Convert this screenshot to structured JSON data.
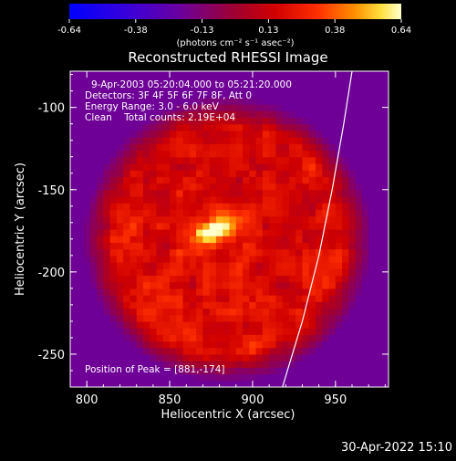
{
  "chart_data": {
    "type": "heatmap",
    "title": "Reconstructed RHESSI Image",
    "xlabel": "Heliocentric X (arcsec)",
    "ylabel": "Heliocentric Y (arcsec)",
    "xlim": [
      790,
      982
    ],
    "ylim": [
      -270,
      -78
    ],
    "xticks": [
      800,
      850,
      900,
      950
    ],
    "yticks": [
      -100,
      -150,
      -200,
      -250
    ],
    "info_lines": [
      "9-Apr-2003 05:20:04.000 to 05:21:20.000",
      "Detectors: 3F 4F 5F 6F 7F 8F, Att 0",
      "Energy Range: 3.0 - 6.0 keV",
      "Clean    Total counts: 2.19E+04"
    ],
    "peak_text": "Position of Peak = [881,-174]",
    "peak": {
      "x": 881,
      "y": -174,
      "value": 0.64
    },
    "colorbar": {
      "range": [
        -0.64,
        0.64
      ],
      "ticks": [
        "-0.64",
        "-0.38",
        "-0.13",
        "0.13",
        "0.38",
        "0.64"
      ],
      "unit_label": "(photons cm⁻² s⁻¹ asec⁻²)"
    },
    "source": {
      "center": [
        885,
        -180
      ],
      "radius": 78,
      "background": -0.2,
      "diffuse_level": 0.12,
      "core_center": [
        876,
        -175
      ],
      "core_sigma": [
        10,
        5
      ],
      "core_angle_deg": 25
    },
    "limb_curve": {
      "points": [
        [
          918,
          -270
        ],
        [
          930,
          -230
        ],
        [
          940,
          -190
        ],
        [
          948,
          -150
        ],
        [
          955,
          -110
        ],
        [
          960,
          -78
        ]
      ]
    }
  },
  "footer": {
    "timestamp": "30-Apr-2022 15:10"
  }
}
